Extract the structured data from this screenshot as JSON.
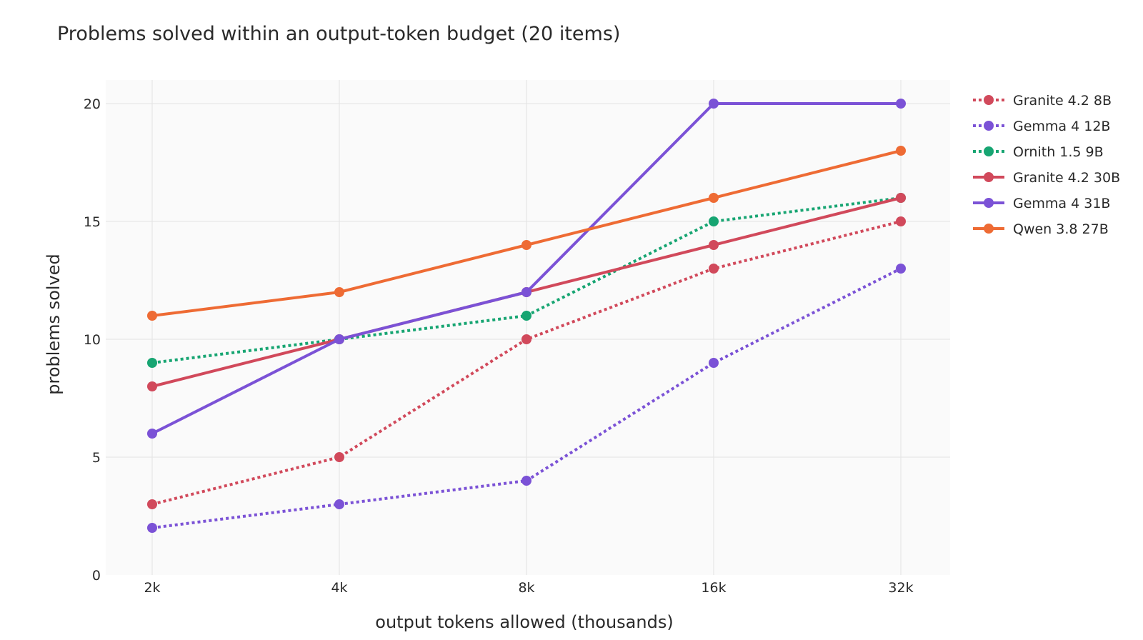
{
  "chart_data": {
    "type": "line",
    "title": "Problems solved within an output-token budget (20 items)",
    "xlabel": "output tokens allowed (thousands)",
    "ylabel": "problems solved",
    "categories": [
      "2k",
      "4k",
      "8k",
      "16k",
      "32k"
    ],
    "x_scale": "log2",
    "ylim": [
      0,
      21
    ],
    "yticks": [
      0,
      5,
      10,
      15,
      20
    ],
    "grid": true,
    "legend_position": "right",
    "series": [
      {
        "name": "Granite 4.2 8B",
        "color": "#d1495b",
        "dash": "dot",
        "values": [
          3,
          5,
          10,
          13,
          15
        ]
      },
      {
        "name": "Gemma 4 12B",
        "color": "#7b52d6",
        "dash": "dot",
        "values": [
          2,
          3,
          4,
          9,
          13
        ]
      },
      {
        "name": "Ornith 1.5 9B",
        "color": "#17a572",
        "dash": "dot",
        "values": [
          9,
          10,
          11,
          15,
          16
        ]
      },
      {
        "name": "Granite 4.2 30B",
        "color": "#d1495b",
        "dash": "solid",
        "values": [
          8,
          10,
          12,
          14,
          16
        ]
      },
      {
        "name": "Gemma 4 31B",
        "color": "#7b52d6",
        "dash": "solid",
        "values": [
          6,
          10,
          12,
          20,
          20
        ]
      },
      {
        "name": "Qwen 3.8 27B",
        "color": "#ee6b34",
        "dash": "solid",
        "values": [
          11,
          12,
          14,
          16,
          18
        ]
      }
    ]
  }
}
